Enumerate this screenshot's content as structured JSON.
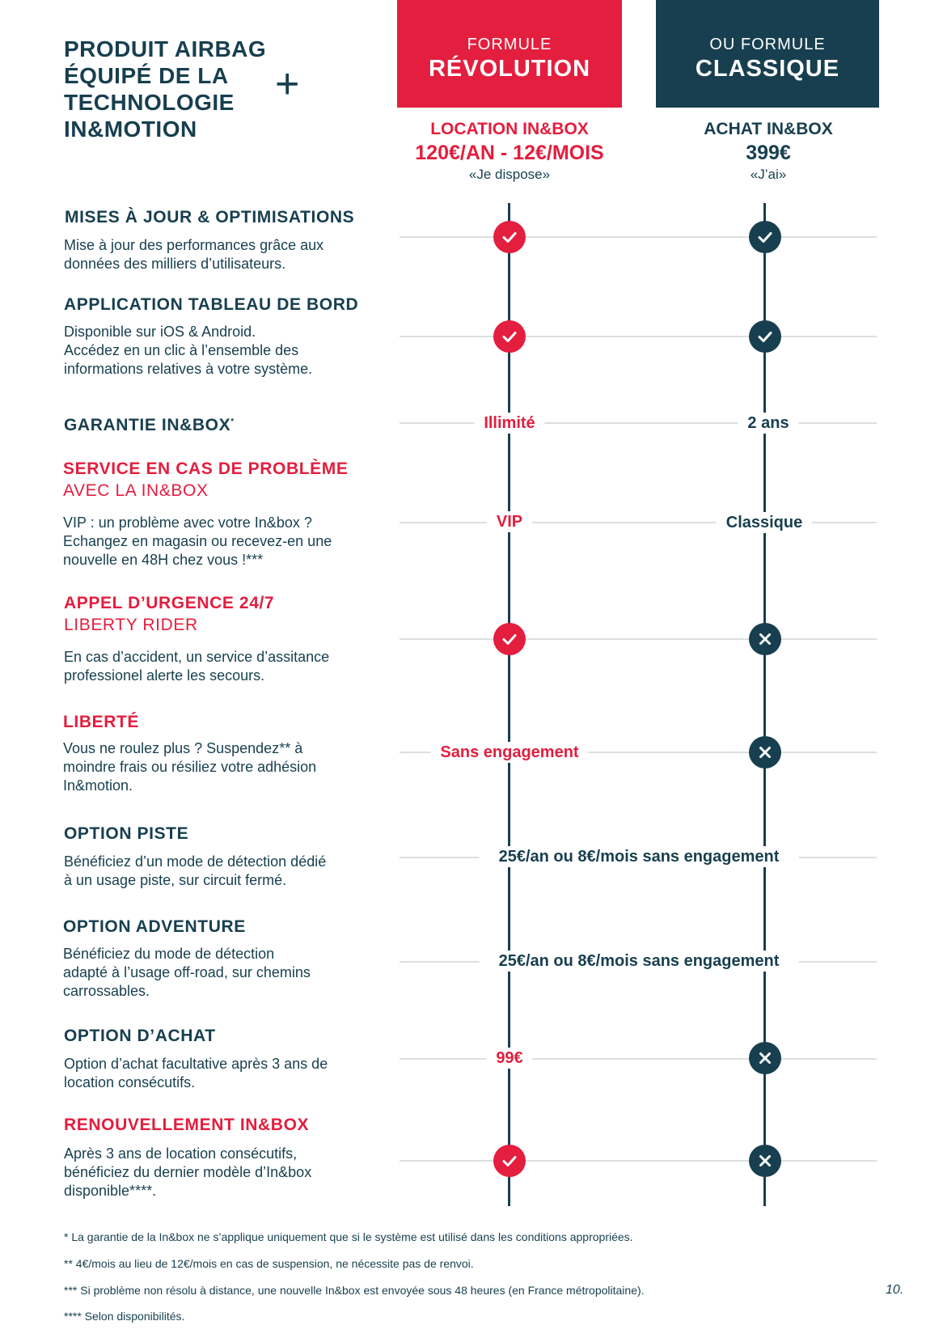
{
  "header": {
    "product_title": "PRODUIT AIRBAG\nÉQUIPÉ DE LA\nTECHNOLOGIE\nIN&MOTION",
    "plus": "+",
    "revolution": {
      "label": "FORMULE",
      "name": "RÉVOLUTION",
      "offer": "LOCATION IN&BOX",
      "price": "120€/AN - 12€/MOIS",
      "motto": "«Je dispose»",
      "color": "#e31e3e"
    },
    "classique": {
      "label": "OU FORMULE",
      "name": "CLASSIQUE",
      "offer": "ACHAT IN&BOX",
      "price": "399€",
      "motto": "«J’ai»",
      "color": "#173f4f"
    }
  },
  "icons": {
    "check": "check-circle-icon",
    "cross": "cross-circle-icon"
  },
  "rows": [
    {
      "title": "MISES À JOUR & OPTIMISATIONS",
      "description": "Mise à jour des performances grâce aux\ndonnées des milliers d’utilisateurs.",
      "revolution": "check",
      "classique": "check"
    },
    {
      "title": "APPLICATION TABLEAU DE BORD",
      "description": "Disponible sur iOS & Android.\nAccédez en un clic à l’ensemble des\ninformations relatives à votre système.",
      "revolution": "check",
      "classique": "check"
    },
    {
      "title": "GARANTIE IN&BOX",
      "title_sup": "*",
      "revolution_text": "Illimité",
      "classique_text": "2 ans"
    },
    {
      "title": "SERVICE EN CAS DE PROBLÈME",
      "subtitle": "AVEC LA IN&BOX",
      "description": "VIP : un problème avec votre In&box ?\nEchangez en magasin ou recevez-en une\nnouvelle en 48H chez vous !***",
      "revolution_text": "VIP",
      "classique_text": "Classique"
    },
    {
      "title": "APPEL D’URGENCE 24/7",
      "subtitle": "LIBERTY RIDER",
      "description": "En cas d’accident, un service d’assitance\nprofessionel alerte les secours.",
      "revolution": "check",
      "classique": "cross"
    },
    {
      "title": "LIBERTÉ",
      "description": "Vous ne roulez plus ? Suspendez** à\nmoindre frais ou résiliez votre adhésion\nIn&motion.",
      "revolution_text": "Sans engagement",
      "classique": "cross"
    },
    {
      "title": "OPTION PISTE",
      "description": "Bénéficiez d’un mode de détection dédié\nà un usage piste, sur circuit fermé.",
      "shared_text": "25€/an ou 8€/mois sans engagement"
    },
    {
      "title": "OPTION ADVENTURE",
      "description": "Bénéficiez du mode de détection\nadapté à l’usage off-road, sur chemins\ncarrossables.",
      "shared_text": "25€/an ou 8€/mois sans engagement"
    },
    {
      "title": "OPTION D’ACHAT",
      "description": "Option d’achat facultative après 3 ans de\nlocation consécutifs.",
      "revolution_text": "99€",
      "classique": "cross"
    },
    {
      "title": "RENOUVELLEMENT IN&BOX",
      "description": "Après 3 ans de location consécutifs,\nbénéficiez du dernier modèle d’In&box\ndisponible****.",
      "revolution": "check",
      "classique": "cross"
    }
  ],
  "footnotes": [
    "* La garantie de la In&box ne s’applique uniquement que si le système est utilisé dans les conditions appropriées.",
    "** 4€/mois au lieu de 12€/mois en cas de suspension, ne nécessite pas de renvoi.",
    "*** Si problème non résolu à distance, une nouvelle In&box est envoyée sous 48 heures (en France métropolitaine).",
    "**** Selon disponibilités."
  ],
  "page_number": "10."
}
